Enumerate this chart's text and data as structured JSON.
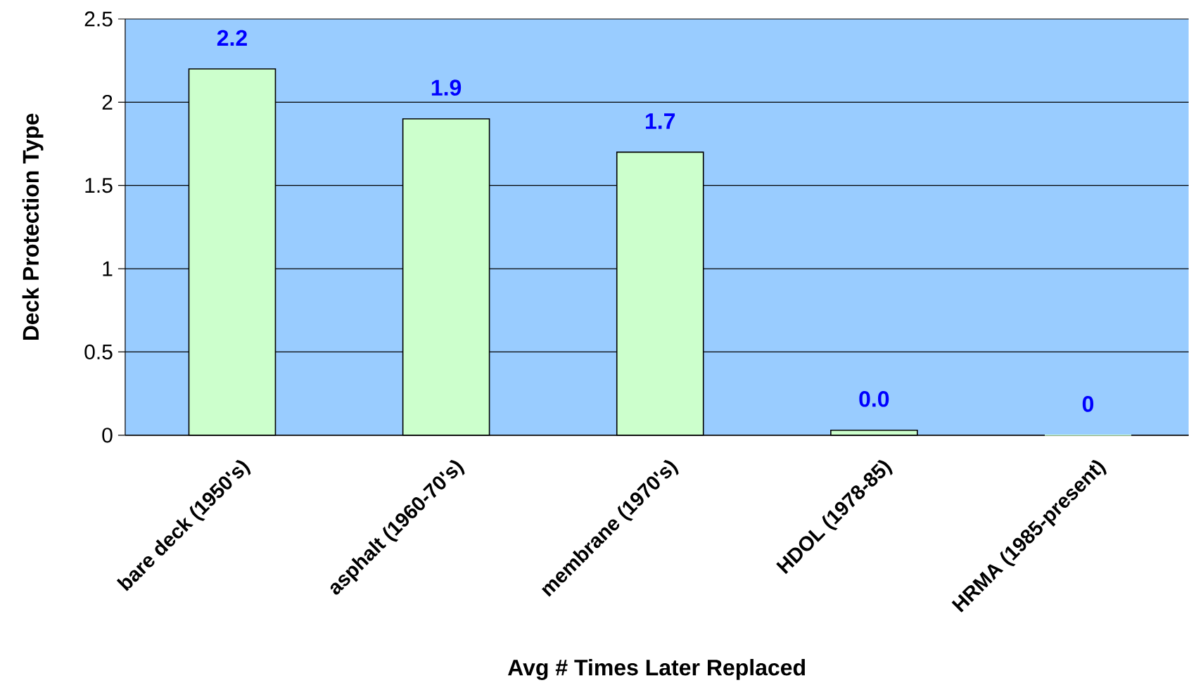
{
  "chart_data": {
    "type": "bar",
    "xlabel": "Avg # Times Later Replaced",
    "ylabel": "Deck Protection Type",
    "categories": [
      "bare deck (1950's)",
      "asphalt (1960-70's)",
      "membrane (1970's)",
      "HDOL (1978-85)",
      "HRMA (1985-present)"
    ],
    "values": [
      2.2,
      1.9,
      1.7,
      0.03,
      0
    ],
    "value_labels": [
      "2.2",
      "1.9",
      "1.7",
      "0.0",
      "0"
    ],
    "color": "#ccffcc",
    "ylim": [
      0,
      2.5
    ],
    "yticks": [
      0,
      0.5,
      1,
      1.5,
      2,
      2.5
    ],
    "grid": "y"
  }
}
